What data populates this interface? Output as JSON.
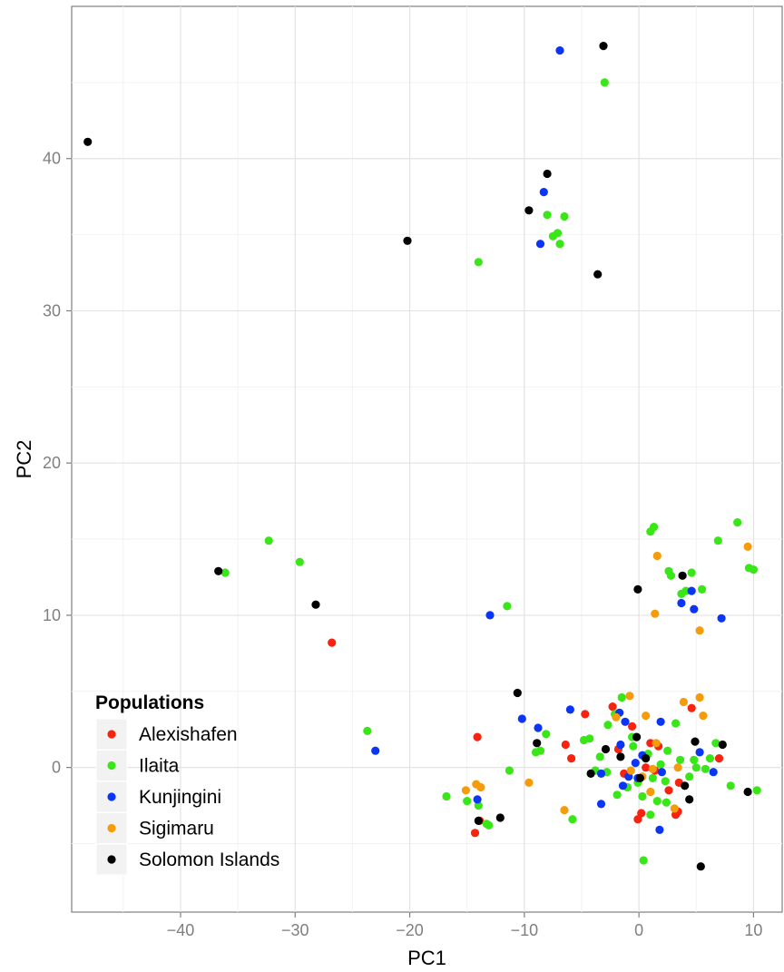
{
  "chart_data": {
    "type": "scatter",
    "xlabel": "PC1",
    "ylabel": "PC2",
    "xlim": [
      -49.5,
      12.5
    ],
    "ylim": [
      -9.5,
      50.0
    ],
    "x_ticks": [
      -40,
      -30,
      -20,
      -10,
      0,
      10
    ],
    "y_ticks": [
      0,
      10,
      20,
      30,
      40
    ],
    "x_tick_labels": [
      "−40",
      "−30",
      "−20",
      "−10",
      "0",
      "10"
    ],
    "y_tick_labels": [
      "0",
      "10",
      "20",
      "30",
      "40"
    ],
    "grid": true,
    "legend": {
      "title": "Populations",
      "placement": "bottom-left"
    },
    "series": [
      {
        "name": "Alexishafen",
        "color": "#f8230f",
        "points": [
          [
            -26.8,
            8.2
          ],
          [
            -14.1,
            2.0
          ],
          [
            -14.3,
            -4.3
          ],
          [
            -13.9,
            -3.5
          ],
          [
            -5.9,
            0.6
          ],
          [
            -4.7,
            3.5
          ],
          [
            -6.4,
            1.5
          ],
          [
            -2.3,
            4.0
          ],
          [
            -1.8,
            1.2
          ],
          [
            -0.6,
            2.7
          ],
          [
            1.0,
            1.6
          ],
          [
            1.7,
            1.4
          ],
          [
            -0.1,
            -3.4
          ],
          [
            0.2,
            -3.0
          ],
          [
            3.2,
            -3.1
          ],
          [
            3.4,
            -2.9
          ],
          [
            2.6,
            -1.5
          ],
          [
            4.6,
            3.9
          ],
          [
            7.0,
            0.6
          ],
          [
            -1.3,
            -0.4
          ],
          [
            0.6,
            0.0
          ],
          [
            1.4,
            -0.2
          ],
          [
            3.5,
            -1.0
          ]
        ]
      },
      {
        "name": "Ilaita",
        "color": "#39e617",
        "points": [
          [
            -3.0,
            45.0
          ],
          [
            -8.0,
            36.3
          ],
          [
            -6.5,
            36.2
          ],
          [
            -7.1,
            35.1
          ],
          [
            -7.5,
            34.9
          ],
          [
            -6.9,
            34.4
          ],
          [
            -14.0,
            33.2
          ],
          [
            -32.3,
            14.9
          ],
          [
            -29.6,
            13.5
          ],
          [
            -36.1,
            12.8
          ],
          [
            -11.5,
            10.6
          ],
          [
            -23.7,
            2.4
          ],
          [
            1.0,
            15.5
          ],
          [
            1.3,
            15.8
          ],
          [
            8.6,
            16.1
          ],
          [
            6.9,
            14.9
          ],
          [
            2.6,
            12.9
          ],
          [
            2.8,
            12.6
          ],
          [
            4.6,
            12.8
          ],
          [
            3.7,
            11.4
          ],
          [
            4.1,
            11.6
          ],
          [
            5.5,
            11.7
          ],
          [
            9.6,
            13.1
          ],
          [
            10.0,
            13.0
          ],
          [
            -16.8,
            -1.9
          ],
          [
            -15.0,
            -2.2
          ],
          [
            -14.0,
            -2.5
          ],
          [
            -13.3,
            -3.7
          ],
          [
            -13.1,
            -3.8
          ],
          [
            -11.3,
            -0.2
          ],
          [
            -8.6,
            1.1
          ],
          [
            -8.1,
            2.2
          ],
          [
            -5.8,
            -3.4
          ],
          [
            -4.8,
            1.8
          ],
          [
            -4.3,
            1.9
          ],
          [
            -2.7,
            2.8
          ],
          [
            -1.5,
            4.6
          ],
          [
            -2.1,
            3.5
          ],
          [
            -3.4,
            0.7
          ],
          [
            -2.8,
            -0.3
          ],
          [
            -1.0,
            -1.3
          ],
          [
            -0.1,
            -1.0
          ],
          [
            0.4,
            -6.1
          ],
          [
            1.0,
            -3.1
          ],
          [
            1.6,
            -2.2
          ],
          [
            2.3,
            -0.9
          ],
          [
            2.5,
            1.1
          ],
          [
            3.2,
            2.9
          ],
          [
            4.8,
            0.5
          ],
          [
            5.0,
            0.0
          ],
          [
            5.8,
            -0.1
          ],
          [
            6.7,
            1.6
          ],
          [
            8.0,
            -1.2
          ],
          [
            10.3,
            -1.5
          ],
          [
            -0.5,
            1.4
          ],
          [
            0.8,
            0.9
          ],
          [
            1.2,
            -0.7
          ],
          [
            -1.9,
            -1.8
          ],
          [
            0.3,
            -1.9
          ],
          [
            1.9,
            0.2
          ],
          [
            -0.6,
            2.0
          ],
          [
            2.4,
            -2.3
          ],
          [
            3.6,
            0.5
          ],
          [
            -9.0,
            1.0
          ],
          [
            -3.8,
            -0.2
          ],
          [
            4.4,
            -0.6
          ],
          [
            6.2,
            0.6
          ]
        ]
      },
      {
        "name": "Kunjingini",
        "color": "#0b35f5",
        "points": [
          [
            -6.9,
            47.1
          ],
          [
            -8.3,
            37.8
          ],
          [
            -8.6,
            34.4
          ],
          [
            -13.0,
            10.0
          ],
          [
            -23.0,
            1.1
          ],
          [
            -14.1,
            -2.1
          ],
          [
            -10.2,
            3.2
          ],
          [
            -8.8,
            2.6
          ],
          [
            -6.0,
            3.8
          ],
          [
            -3.3,
            -2.4
          ],
          [
            -3.3,
            -0.4
          ],
          [
            -1.2,
            3.0
          ],
          [
            -1.7,
            3.6
          ],
          [
            -1.6,
            1.5
          ],
          [
            -0.3,
            0.3
          ],
          [
            -0.9,
            -0.6
          ],
          [
            -1.4,
            -1.2
          ],
          [
            1.8,
            -4.1
          ],
          [
            1.9,
            3.0
          ],
          [
            2.0,
            -0.3
          ],
          [
            4.6,
            11.6
          ],
          [
            3.7,
            10.8
          ],
          [
            4.8,
            10.4
          ],
          [
            7.2,
            9.8
          ],
          [
            5.3,
            1.0
          ],
          [
            6.5,
            -0.3
          ],
          [
            0.3,
            0.8
          ],
          [
            -0.1,
            -0.7
          ]
        ]
      },
      {
        "name": "Sigimaru",
        "color": "#f59c0c",
        "points": [
          [
            1.6,
            13.9
          ],
          [
            9.5,
            14.5
          ],
          [
            1.4,
            10.1
          ],
          [
            5.3,
            9.0
          ],
          [
            -15.1,
            -1.5
          ],
          [
            -14.2,
            -1.1
          ],
          [
            -13.8,
            -1.3
          ],
          [
            -9.6,
            -1.0
          ],
          [
            -6.5,
            -2.8
          ],
          [
            -2.0,
            3.3
          ],
          [
            -0.8,
            4.7
          ],
          [
            0.6,
            3.4
          ],
          [
            1.5,
            1.6
          ],
          [
            3.9,
            4.3
          ],
          [
            5.3,
            4.6
          ],
          [
            5.6,
            3.4
          ],
          [
            3.4,
            0.0
          ],
          [
            1.2,
            -0.1
          ],
          [
            0.3,
            -0.6
          ],
          [
            -0.7,
            -0.2
          ],
          [
            1.0,
            -1.6
          ],
          [
            3.1,
            -2.7
          ]
        ]
      },
      {
        "name": "Solomon Islands",
        "color": "#000000",
        "points": [
          [
            -48.1,
            41.1
          ],
          [
            -3.1,
            47.4
          ],
          [
            -8.0,
            39.0
          ],
          [
            -9.6,
            36.6
          ],
          [
            -20.2,
            34.6
          ],
          [
            -3.6,
            32.4
          ],
          [
            -36.7,
            12.9
          ],
          [
            -28.2,
            10.7
          ],
          [
            -0.1,
            11.7
          ],
          [
            3.8,
            12.6
          ],
          [
            -10.6,
            4.9
          ],
          [
            -8.9,
            1.6
          ],
          [
            -14.0,
            -3.5
          ],
          [
            -12.1,
            -3.3
          ],
          [
            -2.9,
            1.2
          ],
          [
            -4.2,
            -0.4
          ],
          [
            -1.6,
            0.7
          ],
          [
            -0.2,
            2.0
          ],
          [
            0.6,
            0.6
          ],
          [
            0.1,
            -0.7
          ],
          [
            4.9,
            1.7
          ],
          [
            7.3,
            1.5
          ],
          [
            4.0,
            -1.2
          ],
          [
            4.4,
            -2.1
          ],
          [
            9.5,
            -1.6
          ],
          [
            5.4,
            -6.5
          ]
        ]
      }
    ]
  }
}
